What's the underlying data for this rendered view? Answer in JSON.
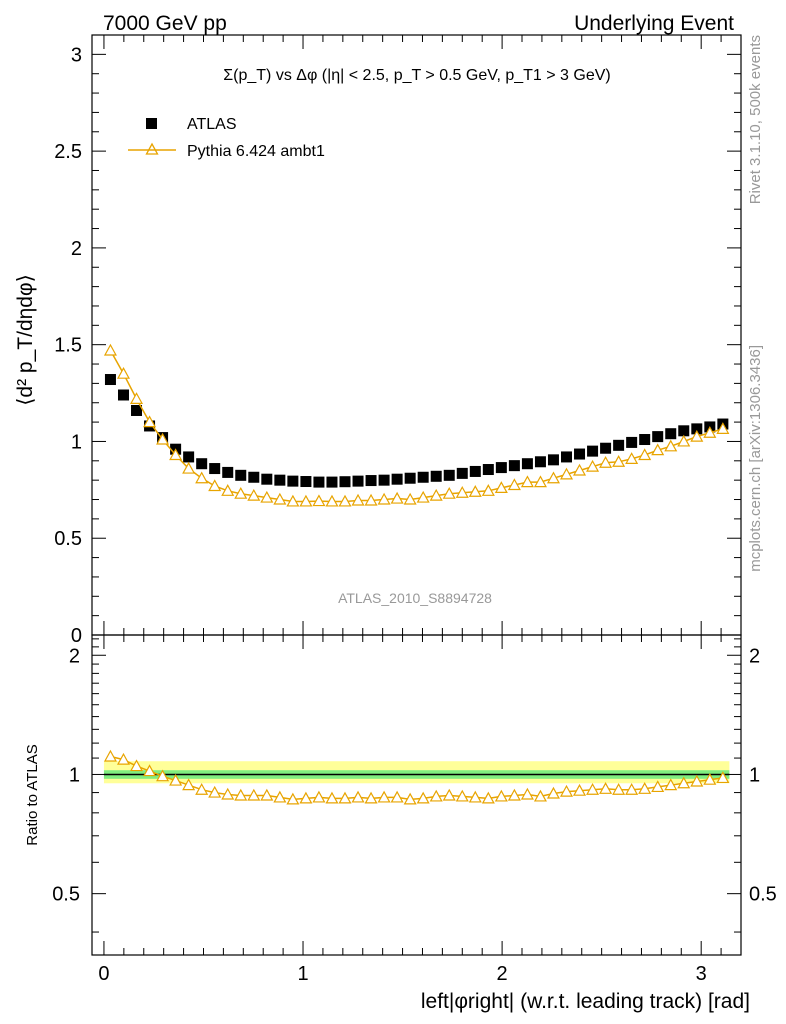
{
  "header": {
    "left": "7000 GeV pp",
    "right": "Underlying Event"
  },
  "side": {
    "top": "Rivet 3.1.10,  500k events",
    "bottom": "mcplots.cern.ch [arXiv:1306.3436]"
  },
  "watermark": "ATLAS_2010_S8894728",
  "colors": {
    "data": "#000000",
    "mc": "#e8a400",
    "band_inner": "#80ee80",
    "band_outer": "#ffff99"
  },
  "chart_data": [
    {
      "type": "scatter",
      "panel": "main",
      "title": "Σ(p_T) vs Δφ (|η| < 2.5, p_T > 0.5 GeV, p_T1 > 3 GeV)",
      "ylabel": "⟨d² p_T/dηdφ⟩",
      "ylim": [
        0,
        3.1
      ],
      "xlim": [
        -0.06,
        3.2
      ],
      "yticks": [
        "0",
        "0.5",
        "1",
        "1.5",
        "2",
        "2.5",
        "3"
      ],
      "legend_position": "top-left",
      "x": [
        0.0327,
        0.0982,
        0.1636,
        0.2291,
        0.2945,
        0.36,
        0.4254,
        0.4909,
        0.5563,
        0.6218,
        0.6872,
        0.7527,
        0.8181,
        0.8836,
        0.949,
        1.0145,
        1.0799,
        1.1454,
        1.2108,
        1.2763,
        1.3417,
        1.4072,
        1.4726,
        1.5381,
        1.6035,
        1.669,
        1.7344,
        1.7999,
        1.8653,
        1.9308,
        1.9962,
        2.0617,
        2.1271,
        2.1926,
        2.258,
        2.3235,
        2.3889,
        2.4544,
        2.5198,
        2.5853,
        2.6507,
        2.7162,
        2.7816,
        2.8471,
        2.9125,
        2.978,
        3.0434,
        3.1089
      ],
      "series": [
        {
          "name": "ATLAS",
          "values": [
            1.32,
            1.24,
            1.16,
            1.08,
            1.02,
            0.96,
            0.92,
            0.885,
            0.86,
            0.84,
            0.825,
            0.815,
            0.805,
            0.8,
            0.795,
            0.793,
            0.79,
            0.79,
            0.792,
            0.795,
            0.798,
            0.8,
            0.805,
            0.81,
            0.815,
            0.82,
            0.825,
            0.835,
            0.845,
            0.855,
            0.865,
            0.875,
            0.885,
            0.895,
            0.905,
            0.92,
            0.935,
            0.95,
            0.965,
            0.98,
            0.995,
            1.01,
            1.025,
            1.04,
            1.055,
            1.065,
            1.075,
            1.09
          ]
        },
        {
          "name": "Pythia 6.424 ambt1",
          "values": [
            1.47,
            1.35,
            1.22,
            1.1,
            1.01,
            0.93,
            0.86,
            0.81,
            0.77,
            0.745,
            0.73,
            0.72,
            0.71,
            0.7,
            0.69,
            0.69,
            0.692,
            0.69,
            0.69,
            0.695,
            0.695,
            0.7,
            0.705,
            0.7,
            0.71,
            0.72,
            0.73,
            0.735,
            0.74,
            0.745,
            0.76,
            0.775,
            0.79,
            0.79,
            0.81,
            0.83,
            0.85,
            0.87,
            0.89,
            0.895,
            0.91,
            0.93,
            0.955,
            0.975,
            1.0,
            1.025,
            1.045,
            1.065
          ]
        }
      ]
    },
    {
      "type": "scatter",
      "panel": "ratio",
      "ylabel": "Ratio to ATLAS",
      "xlabel": "left|φright| (w.r.t. leading track) [rad]",
      "ylim": [
        0.35,
        2.25
      ],
      "xlim": [
        -0.06,
        3.2
      ],
      "xticks": [
        "0",
        "1",
        "2",
        "3"
      ],
      "yticks": [
        "0.5",
        "1",
        "2"
      ],
      "band_inner": [
        0.975,
        1.025
      ],
      "band_outer": [
        0.95,
        1.08
      ],
      "series": [
        {
          "name": "Pythia 6.424 ambt1",
          "values": [
            1.11,
            1.09,
            1.05,
            1.02,
            0.99,
            0.965,
            0.94,
            0.915,
            0.9,
            0.89,
            0.885,
            0.885,
            0.885,
            0.875,
            0.865,
            0.87,
            0.875,
            0.87,
            0.87,
            0.875,
            0.87,
            0.875,
            0.875,
            0.865,
            0.87,
            0.88,
            0.885,
            0.88,
            0.875,
            0.87,
            0.88,
            0.885,
            0.89,
            0.88,
            0.895,
            0.905,
            0.91,
            0.915,
            0.92,
            0.915,
            0.915,
            0.92,
            0.93,
            0.94,
            0.95,
            0.96,
            0.97,
            0.98
          ]
        }
      ]
    }
  ]
}
